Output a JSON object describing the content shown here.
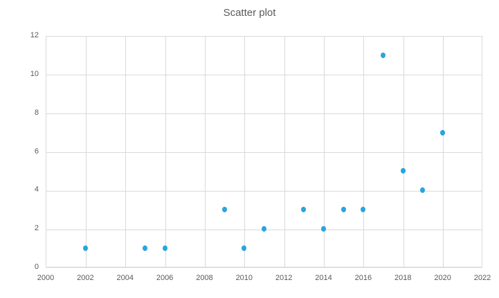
{
  "chart_data": {
    "type": "scatter",
    "title": "Scatter plot",
    "x": [
      2002,
      2005,
      2006,
      2009,
      2010,
      2011,
      2013,
      2014,
      2015,
      2016,
      2017,
      2018,
      2019,
      2020
    ],
    "y": [
      1,
      1,
      1,
      3,
      1,
      2,
      3,
      2,
      3,
      3,
      11,
      5,
      4,
      7
    ],
    "xlim": [
      2000,
      2022
    ],
    "ylim": [
      0,
      12
    ],
    "x_tick_step": 2,
    "y_tick_step": 2,
    "x_tick_labels": [
      "2000",
      "2002",
      "2004",
      "2006",
      "2008",
      "2010",
      "2012",
      "2014",
      "2016",
      "2018",
      "2020",
      "2022"
    ],
    "y_tick_labels": [
      "0",
      "2",
      "4",
      "6",
      "8",
      "10",
      "12"
    ],
    "grid": true,
    "legend": false,
    "xlabel": "",
    "ylabel": "",
    "colors": {
      "marker": "#28a5de",
      "gridline": "#d9d9d9",
      "axis_line": "#c6c6c6",
      "tick_label": "#595959",
      "title": "#595959",
      "background": "#ffffff"
    }
  }
}
